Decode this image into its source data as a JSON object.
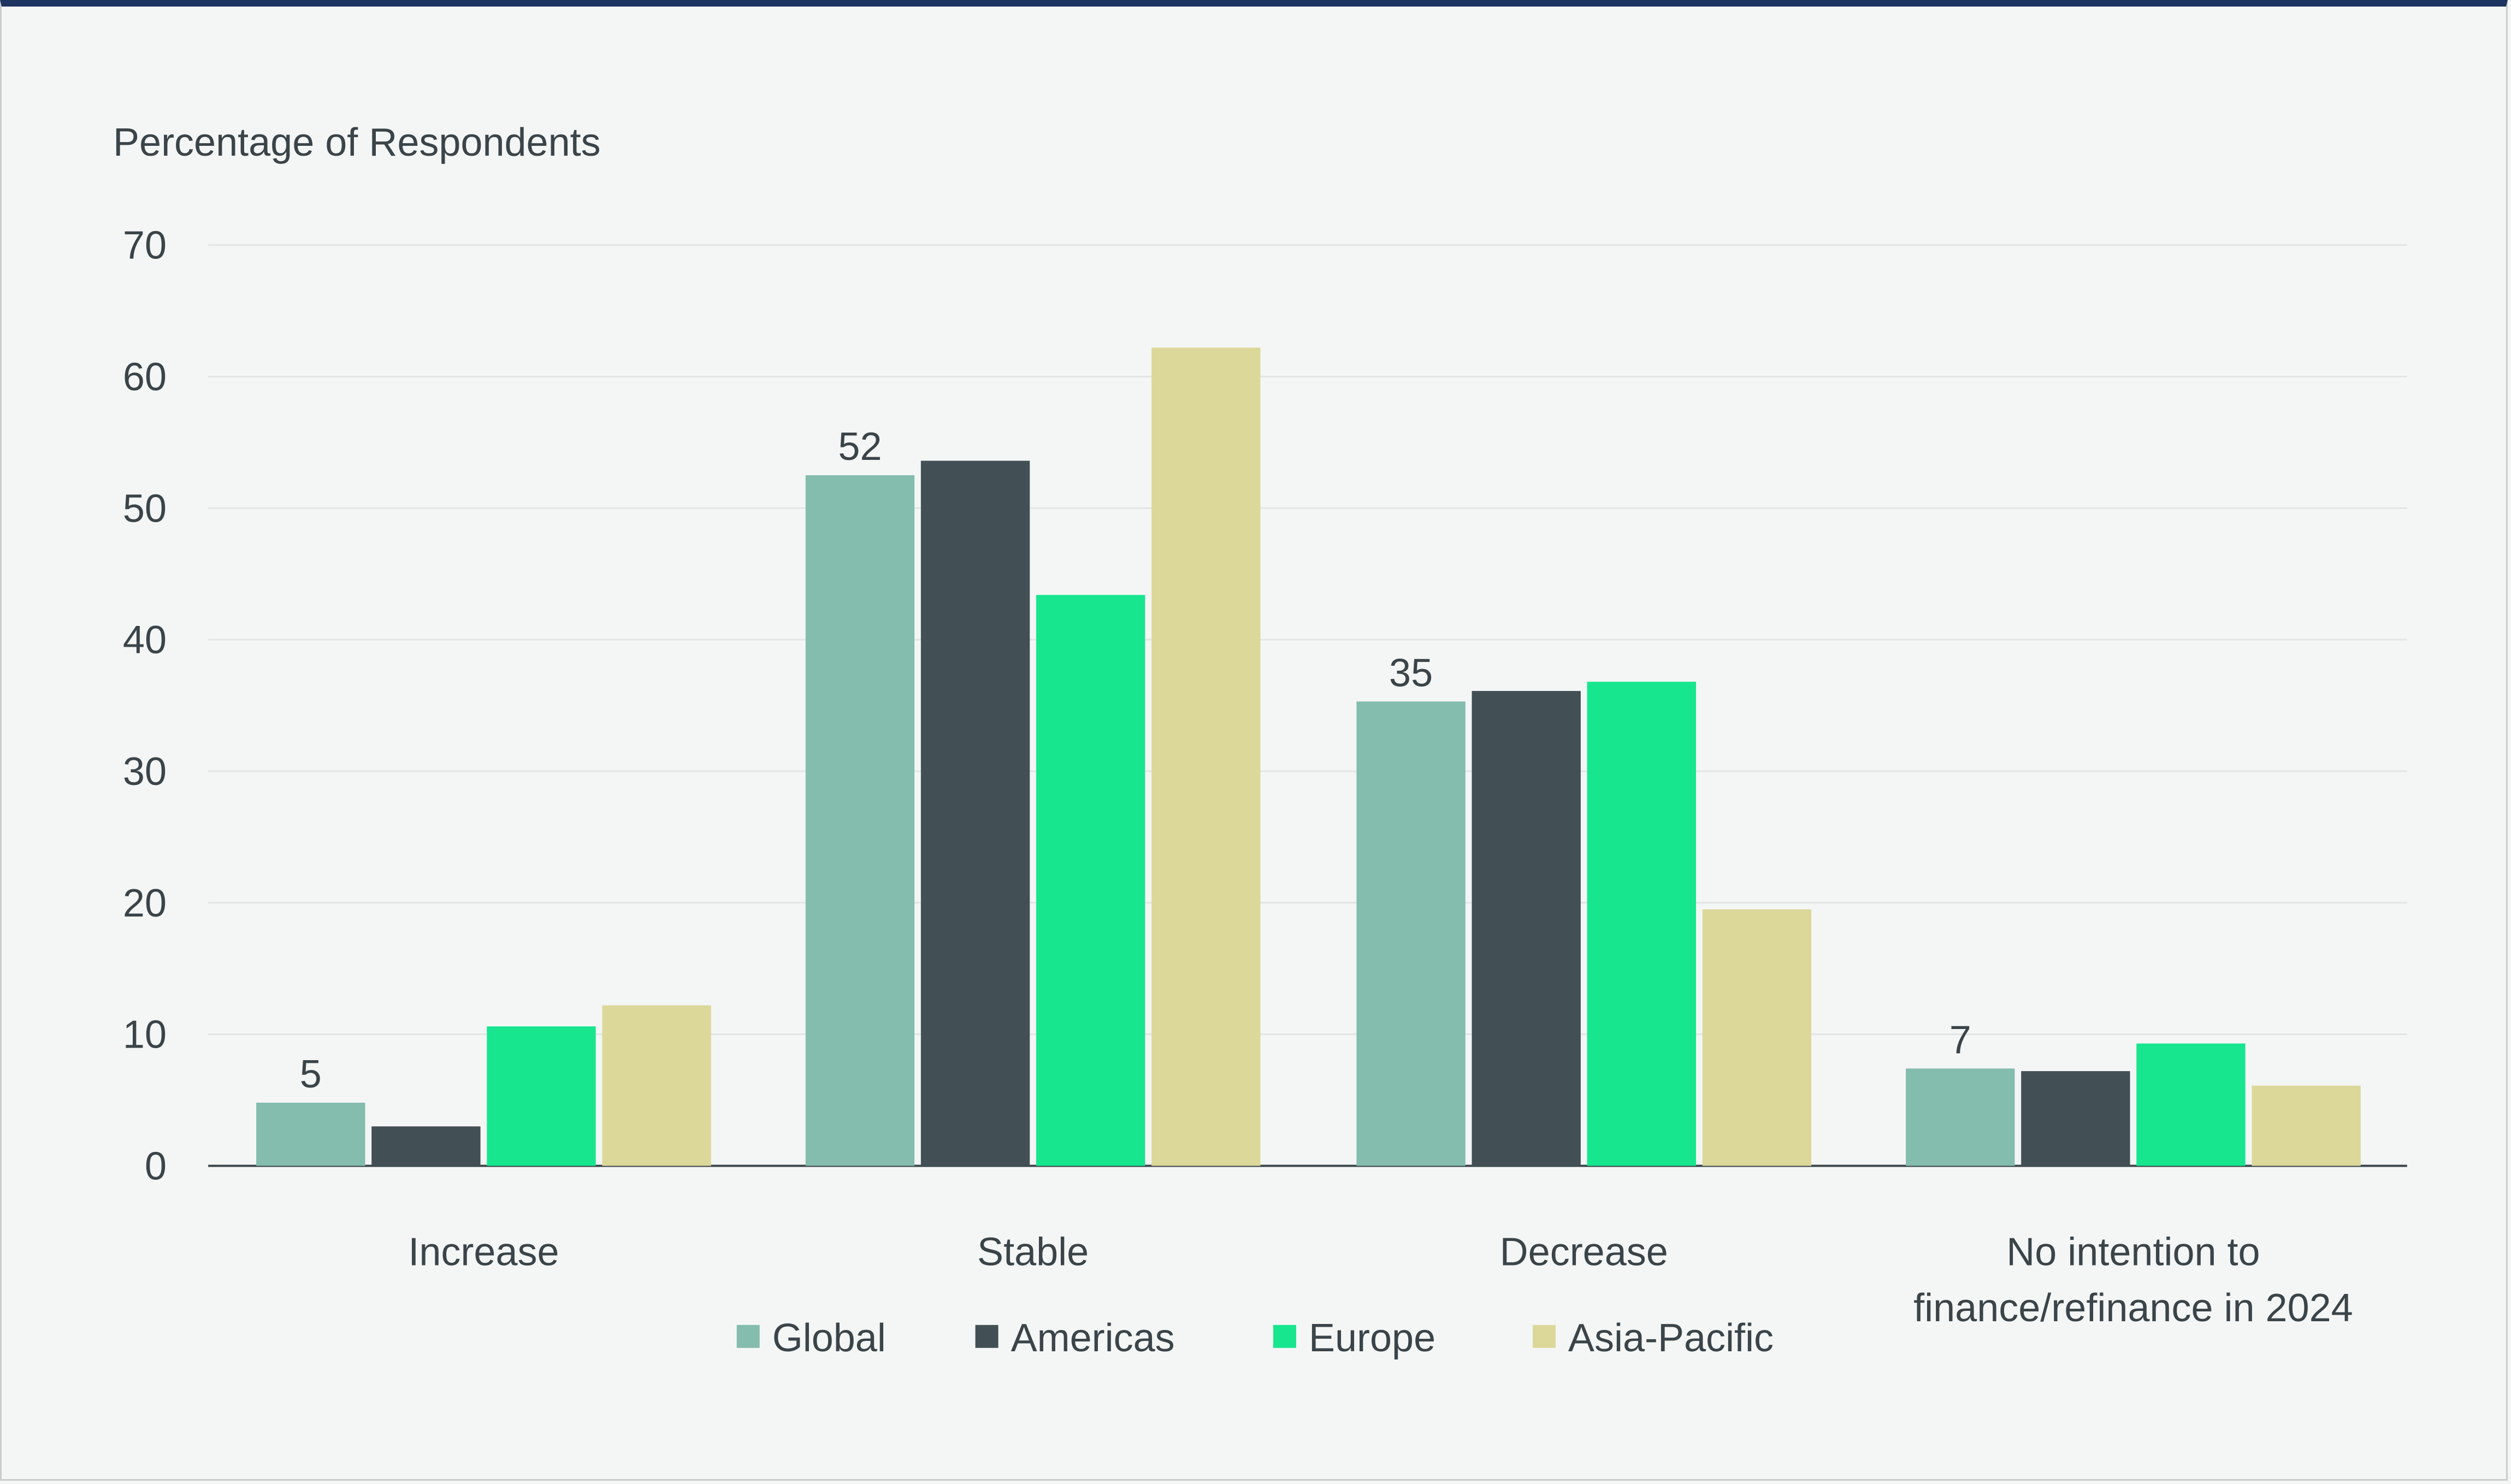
{
  "chart_data": {
    "type": "bar",
    "ylabel": "Percentage of Respondents",
    "ylim": [
      0,
      70
    ],
    "yticks": [
      0,
      10,
      20,
      30,
      40,
      50,
      60,
      70
    ],
    "grid": true,
    "legend_position": "bottom",
    "categories": [
      "Increase",
      "Stable",
      "Decrease",
      "No intention to|finance/refinance in 2024"
    ],
    "series": [
      {
        "name": "Global",
        "color": "#84bcae",
        "values": [
          4.8,
          52.5,
          35.3,
          7.4
        ],
        "labels": [
          "5",
          "52",
          "35",
          "7"
        ]
      },
      {
        "name": "Americas",
        "color": "#425055",
        "values": [
          3.0,
          53.6,
          36.1,
          7.2
        ]
      },
      {
        "name": "Europe",
        "color": "#17e68f",
        "values": [
          10.6,
          43.4,
          36.8,
          9.3
        ]
      },
      {
        "name": "Asia-Pacific",
        "color": "#dcd89a",
        "values": [
          12.2,
          62.2,
          19.5,
          6.1
        ]
      }
    ]
  }
}
